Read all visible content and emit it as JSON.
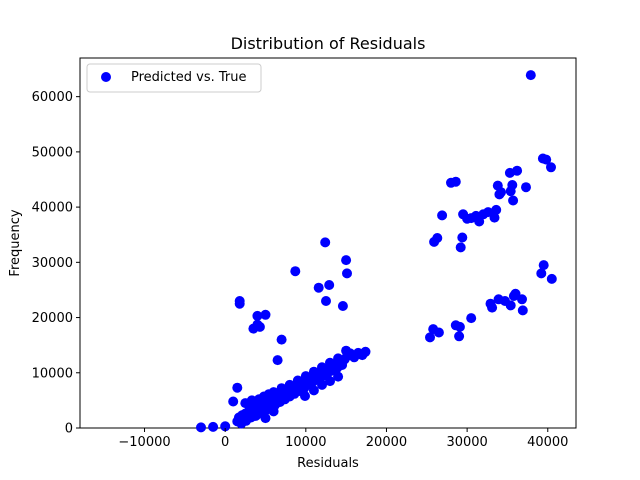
{
  "chart_data": {
    "type": "scatter",
    "title": "Distribution of Residuals",
    "xlabel": "Residuals",
    "ylabel": "Frequency",
    "xlim": [
      -18000,
      43500
    ],
    "ylim": [
      0,
      67000
    ],
    "x_ticks": [
      -10000,
      0,
      10000,
      20000,
      30000,
      40000
    ],
    "y_ticks": [
      0,
      10000,
      20000,
      30000,
      40000,
      50000,
      60000
    ],
    "grid": false,
    "legend": {
      "position": "top-left",
      "entries": [
        "Predicted vs. True"
      ]
    },
    "series": [
      {
        "name": "Predicted vs. True",
        "color": "#0000ff",
        "points": [
          [
            1500,
            1200
          ],
          [
            1700,
            1900
          ],
          [
            1900,
            1500
          ],
          [
            2100,
            2300
          ],
          [
            2300,
            1800
          ],
          [
            2500,
            2600
          ],
          [
            2700,
            2100
          ],
          [
            2900,
            3000
          ],
          [
            3100,
            2400
          ],
          [
            3300,
            3300
          ],
          [
            3500,
            2700
          ],
          [
            3700,
            3500
          ],
          [
            3900,
            3000
          ],
          [
            4100,
            3800
          ],
          [
            4300,
            3300
          ],
          [
            4500,
            4100
          ],
          [
            4700,
            3600
          ],
          [
            4900,
            4400
          ],
          [
            5100,
            3900
          ],
          [
            5300,
            4700
          ],
          [
            5500,
            4200
          ],
          [
            5800,
            5100
          ],
          [
            6100,
            4600
          ],
          [
            6400,
            5500
          ],
          [
            6700,
            5000
          ],
          [
            7000,
            5900
          ],
          [
            7300,
            5400
          ],
          [
            7600,
            6400
          ],
          [
            7900,
            5900
          ],
          [
            8200,
            6900
          ],
          [
            8500,
            6400
          ],
          [
            8800,
            7400
          ],
          [
            9100,
            6900
          ],
          [
            9400,
            7900
          ],
          [
            9700,
            7400
          ],
          [
            10000,
            8400
          ],
          [
            10300,
            7900
          ],
          [
            10600,
            8900
          ],
          [
            10900,
            8400
          ],
          [
            11200,
            9400
          ],
          [
            11500,
            8900
          ],
          [
            11800,
            9900
          ],
          [
            12100,
            9400
          ],
          [
            12400,
            10400
          ],
          [
            12700,
            9900
          ],
          [
            13000,
            10900
          ],
          [
            13300,
            10400
          ],
          [
            13600,
            11400
          ],
          [
            13900,
            10900
          ],
          [
            14200,
            11900
          ],
          [
            14500,
            11400
          ],
          [
            14800,
            12400
          ],
          [
            15100,
            13000
          ],
          [
            15500,
            13500
          ],
          [
            16000,
            12800
          ],
          [
            16500,
            13600
          ],
          [
            17000,
            13200
          ],
          [
            17400,
            13800
          ],
          [
            2000,
            800
          ],
          [
            2600,
            1300
          ],
          [
            3200,
            1900
          ],
          [
            3800,
            2200
          ],
          [
            4400,
            2800
          ],
          [
            5000,
            3200
          ],
          [
            5600,
            3700
          ],
          [
            6200,
            4200
          ],
          [
            6800,
            4700
          ],
          [
            7400,
            5200
          ],
          [
            8000,
            5700
          ],
          [
            8600,
            6200
          ],
          [
            9200,
            6700
          ],
          [
            9800,
            7200
          ],
          [
            3000,
            4200
          ],
          [
            3600,
            4700
          ],
          [
            4200,
            5200
          ],
          [
            4800,
            5700
          ],
          [
            5400,
            6100
          ],
          [
            6000,
            6500
          ],
          [
            7000,
            7200
          ],
          [
            8000,
            7800
          ],
          [
            9000,
            8600
          ],
          [
            10000,
            9400
          ],
          [
            11000,
            10200
          ],
          [
            12000,
            11000
          ],
          [
            13000,
            11800
          ],
          [
            14000,
            12600
          ],
          [
            15000,
            14000
          ],
          [
            9900,
            5800
          ],
          [
            11000,
            6800
          ],
          [
            12000,
            7800
          ],
          [
            13000,
            8500
          ],
          [
            14000,
            9300
          ],
          [
            1000,
            4800
          ],
          [
            2500,
            4500
          ],
          [
            3300,
            5000
          ],
          [
            4000,
            2500
          ],
          [
            5000,
            1800
          ],
          [
            6000,
            3000
          ],
          [
            1500,
            7300
          ],
          [
            6500,
            12300
          ],
          [
            7000,
            16000
          ],
          [
            3500,
            18000
          ],
          [
            1800,
            22500
          ],
          [
            1800,
            23000
          ],
          [
            4000,
            18700
          ],
          [
            4300,
            18300
          ],
          [
            4000,
            20300
          ],
          [
            5000,
            20500
          ],
          [
            8700,
            28400
          ],
          [
            11600,
            25400
          ],
          [
            12400,
            33600
          ],
          [
            12500,
            23000
          ],
          [
            12900,
            25900
          ],
          [
            14600,
            22100
          ],
          [
            15000,
            30400
          ],
          [
            15100,
            28000
          ],
          [
            25400,
            16400
          ],
          [
            25800,
            17900
          ],
          [
            26500,
            17300
          ],
          [
            28600,
            18600
          ],
          [
            29000,
            16600
          ],
          [
            29100,
            18300
          ],
          [
            30500,
            19900
          ],
          [
            32900,
            22500
          ],
          [
            33100,
            21800
          ],
          [
            33900,
            23300
          ],
          [
            34700,
            23000
          ],
          [
            35400,
            22200
          ],
          [
            35800,
            23900
          ],
          [
            36000,
            24300
          ],
          [
            36800,
            23300
          ],
          [
            36900,
            21300
          ],
          [
            39200,
            28000
          ],
          [
            39500,
            29500
          ],
          [
            40500,
            27000
          ],
          [
            25900,
            33700
          ],
          [
            26300,
            34400
          ],
          [
            26900,
            38500
          ],
          [
            28000,
            44400
          ],
          [
            28600,
            44600
          ],
          [
            29200,
            32700
          ],
          [
            29400,
            34500
          ],
          [
            29500,
            38700
          ],
          [
            30000,
            37900
          ],
          [
            30500,
            38000
          ],
          [
            31100,
            38400
          ],
          [
            31500,
            37400
          ],
          [
            32000,
            38700
          ],
          [
            32600,
            39100
          ],
          [
            33400,
            38100
          ],
          [
            33600,
            39500
          ],
          [
            33800,
            43900
          ],
          [
            34000,
            42300
          ],
          [
            34200,
            42700
          ],
          [
            35300,
            46200
          ],
          [
            35400,
            42900
          ],
          [
            35600,
            44000
          ],
          [
            35700,
            41200
          ],
          [
            36200,
            46600
          ],
          [
            37300,
            43600
          ],
          [
            37900,
            63900
          ],
          [
            39400,
            48800
          ],
          [
            39800,
            48600
          ],
          [
            40400,
            47200
          ],
          [
            -1500,
            200
          ],
          [
            -3000,
            100
          ],
          [
            0,
            300
          ]
        ]
      }
    ]
  }
}
